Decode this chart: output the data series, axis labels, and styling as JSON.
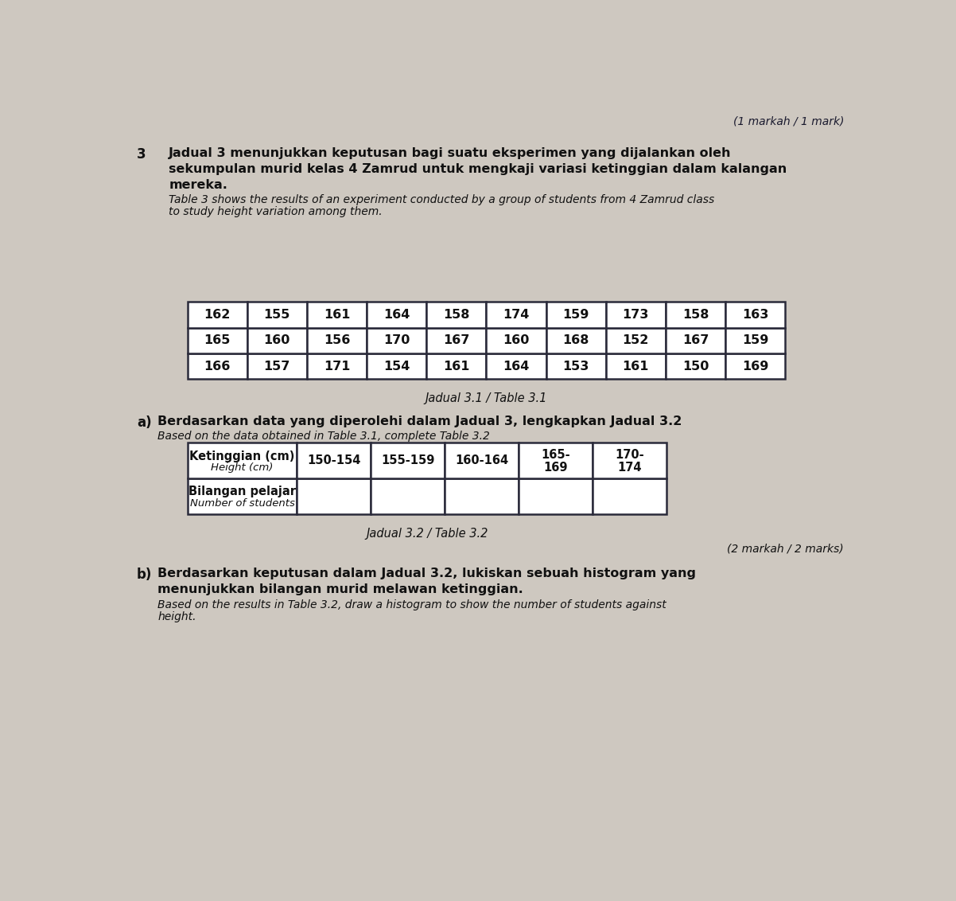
{
  "background_color": "#cec8c0",
  "page_title_mark": "(1 markah / 1 mark)",
  "question_number": "3",
  "malay_line1": "Jadual 3 menunjukkan keputusan bagi suatu eksperimen yang dijalankan oleh",
  "malay_line2": "sekumpulan murid kelas 4 Zamrud untuk mengkaji variasi ketinggian dalam kalangan",
  "malay_line3": "mereka.",
  "english_line1": "Table 3 shows the results of an experiment conducted by a group of students from 4 Zamrud class",
  "english_line2": "to study height variation among them.",
  "table31_caption": "Jadual 3.1 / Table 3.1",
  "table31_data": [
    [
      162,
      155,
      161,
      164,
      158,
      174,
      159,
      173,
      158,
      163
    ],
    [
      165,
      160,
      156,
      170,
      167,
      160,
      168,
      152,
      167,
      159
    ],
    [
      166,
      157,
      171,
      154,
      161,
      164,
      153,
      161,
      150,
      169
    ]
  ],
  "part_a_label": "a)",
  "part_a_malay": "Berdasarkan data yang diperolehi dalam Jadual 3, lengkapkan Jadual 3.2",
  "part_a_english": "Based on the data obtained in Table 3.1, complete Table 3.2",
  "table32_caption": "Jadual 3.2 / Table 3.2",
  "table32_mark": "(2 markah / 2 marks)",
  "table32_col1_r1_l1": "Ketinggian (cm)",
  "table32_col1_r1_l2": "Height (cm)",
  "table32_col1_r2_l1": "Bilangan pelajar",
  "table32_col1_r2_l2": "Number of students",
  "table32_headers": [
    "150-154",
    "155-159",
    "160-164",
    "165-\n169",
    "170-\n174"
  ],
  "part_b_label": "b)",
  "part_b_malay1": "Berdasarkan keputusan dalam Jadual 3.2, lukiskan sebuah histogram yang",
  "part_b_malay2": "menunjukkan bilangan murid melawan ketinggian.",
  "part_b_english1": "Based on the results in Table 3.2, draw a histogram to show the number of students against",
  "part_b_english2": "height."
}
